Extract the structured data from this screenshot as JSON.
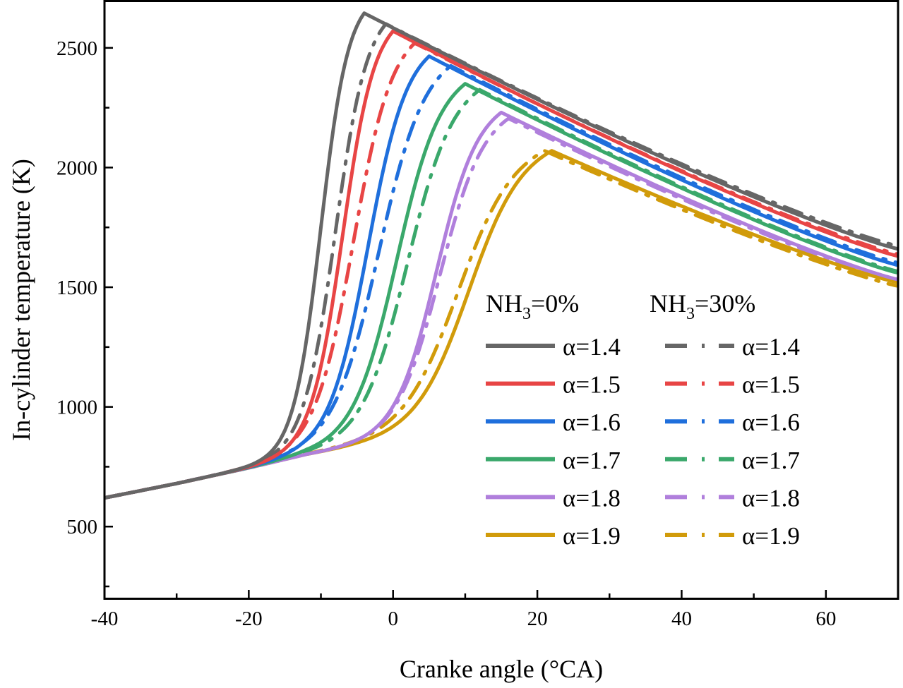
{
  "chart_data": {
    "type": "line",
    "title": "",
    "xlabel": "Cranke angle (°CA)",
    "ylabel": "In-cylinder temperature (K)",
    "xlim": [
      -40,
      70
    ],
    "ylim": [
      200,
      2700
    ],
    "xticks": [
      -40,
      -20,
      0,
      20,
      40,
      60
    ],
    "xtick_labels": [
      "-40",
      "-20",
      "0",
      "20",
      "40",
      "60"
    ],
    "xminor": [
      -30,
      -10,
      10,
      30,
      50
    ],
    "yticks": [
      500,
      1000,
      1500,
      2000,
      2500
    ],
    "ytick_labels": [
      "500",
      "1000",
      "1500",
      "2000",
      "2500"
    ],
    "yminor": [
      250,
      750,
      1250,
      1750,
      2250
    ],
    "grid": false,
    "legend": {
      "placement": "center-right",
      "group_headers": [
        {
          "base": "NH",
          "sub": "3",
          "rest": "=0%"
        },
        {
          "base": "NH",
          "sub": "3",
          "rest": "=30%"
        }
      ]
    },
    "compression_baseline": {
      "x": [
        -40,
        -30,
        -20,
        -15,
        -12
      ],
      "y": [
        620,
        680,
        745,
        780,
        800
      ]
    },
    "series": [
      {
        "name": "α=1.4",
        "group": "NH3=0%",
        "style": "solid",
        "color": "#666666",
        "rise_mid_x": -10.0,
        "peak": [
          -4,
          2645
        ],
        "end_y": 1660
      },
      {
        "name": "α=1.5",
        "group": "NH3=0%",
        "style": "solid",
        "color": "#e84545",
        "rise_mid_x": -7.0,
        "peak": [
          0,
          2570
        ],
        "end_y": 1630
      },
      {
        "name": "α=1.6",
        "group": "NH3=0%",
        "style": "solid",
        "color": "#1f6fdc",
        "rise_mid_x": -3.5,
        "peak": [
          5,
          2465
        ],
        "end_y": 1592
      },
      {
        "name": "α=1.7",
        "group": "NH3=0%",
        "style": "solid",
        "color": "#3aa86b",
        "rise_mid_x": 0.5,
        "peak": [
          10,
          2350
        ],
        "end_y": 1560
      },
      {
        "name": "α=1.8",
        "group": "NH3=0%",
        "style": "solid",
        "color": "#b07fdc",
        "rise_mid_x": 6.0,
        "peak": [
          15,
          2230
        ],
        "end_y": 1532
      },
      {
        "name": "α=1.9",
        "group": "NH3=0%",
        "style": "solid",
        "color": "#d19b0a",
        "rise_mid_x": 10.5,
        "peak": [
          22,
          2070
        ],
        "end_y": 1520
      },
      {
        "name": "α=1.4",
        "group": "NH3=30%",
        "style": "dash-dot",
        "color": "#666666",
        "rise_mid_x": -8.0,
        "peak": [
          -1,
          2600
        ],
        "end_y": 1672
      },
      {
        "name": "α=1.5",
        "group": "NH3=30%",
        "style": "dash-dot",
        "color": "#e84545",
        "rise_mid_x": -5.5,
        "peak": [
          3,
          2520
        ],
        "end_y": 1638
      },
      {
        "name": "α=1.6",
        "group": "NH3=30%",
        "style": "dash-dot",
        "color": "#1f6fdc",
        "rise_mid_x": -2.0,
        "peak": [
          8,
          2425
        ],
        "end_y": 1602
      },
      {
        "name": "α=1.7",
        "group": "NH3=30%",
        "style": "dash-dot",
        "color": "#3aa86b",
        "rise_mid_x": 2.0,
        "peak": [
          12,
          2325
        ],
        "end_y": 1566
      },
      {
        "name": "α=1.8",
        "group": "NH3=30%",
        "style": "dash-dot",
        "color": "#b07fdc",
        "rise_mid_x": 6.5,
        "peak": [
          16,
          2205
        ],
        "end_y": 1525
      },
      {
        "name": "α=1.9",
        "group": "NH3=30%",
        "style": "dash-dot",
        "color": "#d19b0a",
        "rise_mid_x": 9.0,
        "peak": [
          21,
          2070
        ],
        "end_y": 1505
      }
    ]
  }
}
